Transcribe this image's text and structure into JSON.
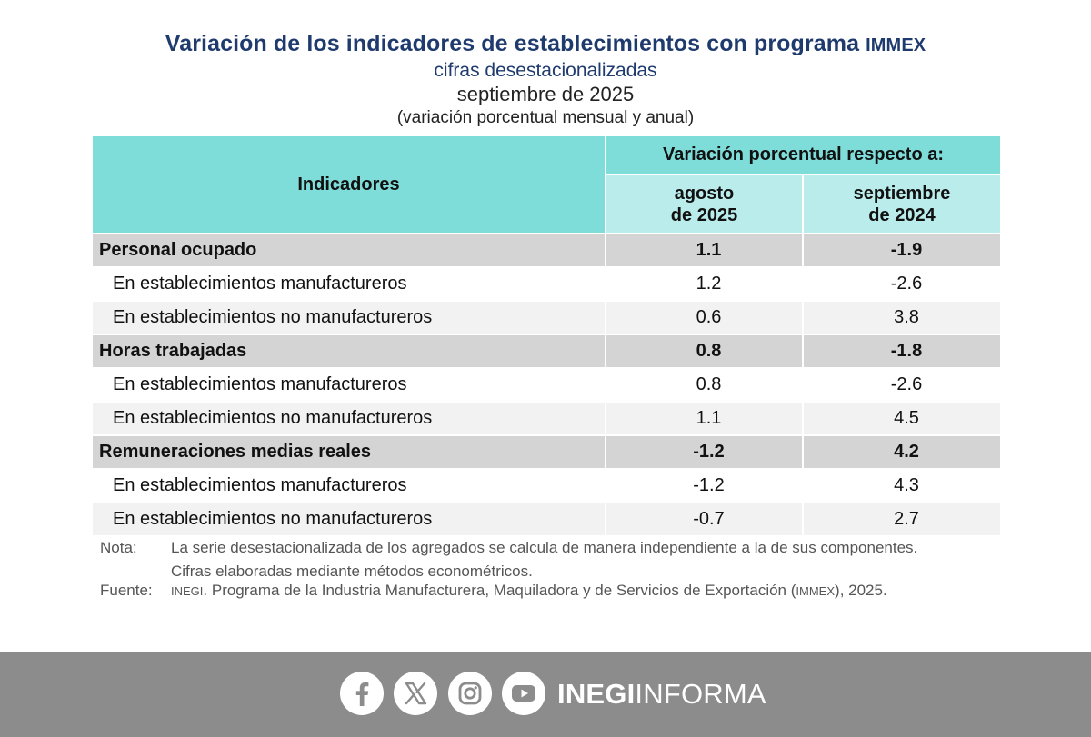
{
  "header": {
    "title": "Variación de los indicadores de establecimientos con programa",
    "title_acronym": "IMMEX",
    "subtitle": "cifras desestacionalizadas",
    "period": "septiembre de 2025",
    "units": "(variación porcentual mensual y anual)"
  },
  "table": {
    "col_indicadores": "Indicadores",
    "col_variacion": "Variación porcentual respecto a:",
    "col_agosto_1": "agosto",
    "col_agosto_2": "de 2025",
    "col_sept_1": "septiembre",
    "col_sept_2": "de 2024",
    "rows": [
      {
        "label": "Personal ocupado",
        "monthly": "1.1",
        "annual": "-1.9"
      },
      {
        "label": "En establecimientos manufactureros",
        "monthly": "1.2",
        "annual": "-2.6"
      },
      {
        "label": "En establecimientos no manufactureros",
        "monthly": "0.6",
        "annual": "3.8"
      },
      {
        "label": "Horas trabajadas",
        "monthly": "0.8",
        "annual": "-1.8"
      },
      {
        "label": "En establecimientos manufactureros",
        "monthly": "0.8",
        "annual": "-2.6"
      },
      {
        "label": "En establecimientos no manufactureros",
        "monthly": "1.1",
        "annual": "4.5"
      },
      {
        "label": "Remuneraciones medias reales",
        "monthly": "-1.2",
        "annual": "4.2"
      },
      {
        "label": "En establecimientos manufactureros",
        "monthly": "-1.2",
        "annual": "4.3"
      },
      {
        "label": "En establecimientos no manufactureros",
        "monthly": "-0.7",
        "annual": "2.7"
      }
    ]
  },
  "notes": {
    "nota_label": "Nota:",
    "nota_text_1": "La serie desestacionalizada de los agregados se calcula de manera independiente a la de sus componentes.",
    "nota_text_2": "Cifras elaboradas mediante métodos econométricos.",
    "fuente_label": "Fuente:",
    "fuente_org": "INEGI",
    "fuente_text": ". Programa de la Industria Manufacturera, Maquiladora y de Servicios de Exportación (",
    "fuente_acronym": "IMMEX",
    "fuente_end": "), 2025."
  },
  "footer": {
    "brand_bold": "INEGI",
    "brand_light": "INFORMA",
    "icons": [
      "facebook-icon",
      "x-icon",
      "instagram-icon",
      "youtube-icon"
    ]
  },
  "colors": {
    "title": "#1f3b6e",
    "header_teal": "#7fddd9",
    "subheader_teal": "#b9ecea",
    "group_row_gray": "#d4d4d4",
    "alt_row_gray": "#f2f2f2",
    "footer_gray": "#8c8c8c"
  }
}
